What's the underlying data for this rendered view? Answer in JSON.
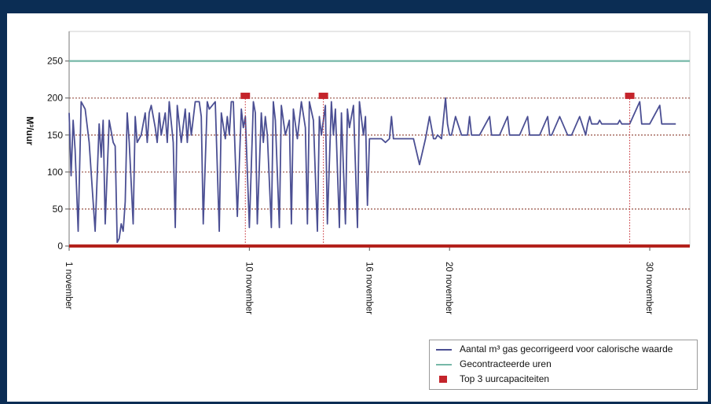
{
  "colors": {
    "frame": "#0b2d54",
    "series": "#4b4f93",
    "contract": "#76b8a8",
    "top3": "#c4242b",
    "grid": "#a06055",
    "axis": "#b3211c"
  },
  "chart_data": {
    "type": "line",
    "ylabel": "M³/uur",
    "xlabel": "",
    "ylim": [
      0,
      290
    ],
    "yticks": [
      0,
      50,
      100,
      150,
      200,
      250
    ],
    "xlim": [
      1,
      32
    ],
    "xticks": [
      {
        "value": 1,
        "label": "1 november"
      },
      {
        "value": 10,
        "label": "10 november"
      },
      {
        "value": 16,
        "label": "16 november"
      },
      {
        "value": 20,
        "label": "20 november"
      },
      {
        "value": 30,
        "label": "30 november"
      }
    ],
    "grid": "horizontal dashed",
    "legend_position": "bottom-right",
    "series": [
      {
        "name": "Aantal m³ gas gecorrigeerd voor calorische waarde",
        "x": [
          1.0,
          1.1,
          1.2,
          1.3,
          1.45,
          1.6,
          1.8,
          2.0,
          2.1,
          2.3,
          2.5,
          2.6,
          2.7,
          2.8,
          3.0,
          3.2,
          3.3,
          3.4,
          3.5,
          3.6,
          3.7,
          3.8,
          3.9,
          4.0,
          4.2,
          4.3,
          4.4,
          4.6,
          4.8,
          4.9,
          5.0,
          5.1,
          5.3,
          5.4,
          5.5,
          5.6,
          5.8,
          5.9,
          6.0,
          6.2,
          6.3,
          6.4,
          6.6,
          6.8,
          6.9,
          7.0,
          7.1,
          7.3,
          7.5,
          7.6,
          7.7,
          7.9,
          8.0,
          8.3,
          8.5,
          8.6,
          8.8,
          8.9,
          9.0,
          9.1,
          9.2,
          9.4,
          9.6,
          9.7,
          9.8,
          10.0,
          10.2,
          10.3,
          10.4,
          10.6,
          10.7,
          10.8,
          10.9,
          11.1,
          11.2,
          11.3,
          11.5,
          11.6,
          11.8,
          12.0,
          12.1,
          12.2,
          12.4,
          12.6,
          12.8,
          12.9,
          13.0,
          13.2,
          13.4,
          13.5,
          13.6,
          13.8,
          13.9,
          14.1,
          14.2,
          14.3,
          14.5,
          14.6,
          14.8,
          14.9,
          15.0,
          15.2,
          15.4,
          15.5,
          15.7,
          15.8,
          15.9,
          16.0,
          16.3,
          16.6,
          16.8,
          17.0,
          17.1,
          17.2,
          17.5,
          17.8,
          18.0,
          18.1,
          18.2,
          18.5,
          18.8,
          19.0,
          19.2,
          19.3,
          19.4,
          19.6,
          19.8,
          19.9,
          20.0,
          20.1,
          20.3,
          20.6,
          20.9,
          21.0,
          21.1,
          21.2,
          21.5,
          22.0,
          22.1,
          22.2,
          22.5,
          22.9,
          23.0,
          23.1,
          23.5,
          23.9,
          24.0,
          24.1,
          24.5,
          24.9,
          25.0,
          25.1,
          25.5,
          25.9,
          26.0,
          26.1,
          26.5,
          26.8,
          26.9,
          27.0,
          27.1,
          27.4,
          27.5,
          27.6,
          28.0,
          28.4,
          28.5,
          28.6,
          29.0,
          29.5,
          29.6,
          29.7,
          30.0,
          30.5,
          30.6,
          30.7,
          31.0,
          31.3
        ],
        "values": [
          180,
          95,
          170,
          130,
          20,
          195,
          185,
          140,
          100,
          20,
          165,
          120,
          170,
          30,
          170,
          140,
          135,
          5,
          10,
          30,
          20,
          60,
          180,
          140,
          30,
          175,
          140,
          150,
          180,
          140,
          180,
          190,
          160,
          140,
          180,
          150,
          180,
          140,
          195,
          140,
          25,
          190,
          140,
          185,
          140,
          180,
          150,
          195,
          195,
          175,
          30,
          195,
          185,
          195,
          20,
          180,
          145,
          175,
          150,
          195,
          195,
          40,
          185,
          160,
          175,
          25,
          195,
          180,
          30,
          180,
          140,
          175,
          150,
          25,
          195,
          170,
          25,
          190,
          150,
          170,
          30,
          185,
          145,
          195,
          160,
          30,
          195,
          170,
          20,
          175,
          150,
          190,
          30,
          195,
          150,
          185,
          25,
          180,
          30,
          185,
          160,
          190,
          25,
          195,
          150,
          175,
          55,
          145,
          145,
          145,
          140,
          145,
          175,
          145,
          145,
          145,
          145,
          145,
          145,
          110,
          145,
          175,
          145,
          145,
          150,
          145,
          200,
          165,
          150,
          150,
          175,
          150,
          150,
          175,
          150,
          150,
          150,
          175,
          150,
          150,
          150,
          175,
          150,
          150,
          150,
          175,
          150,
          150,
          150,
          175,
          150,
          150,
          175,
          150,
          150,
          150,
          175,
          150,
          165,
          175,
          165,
          165,
          170,
          165,
          165,
          165,
          170,
          165,
          165,
          195,
          165,
          165,
          165,
          190,
          165,
          165,
          165,
          165
        ]
      },
      {
        "name": "Gecontracteerde uren",
        "x": [
          1,
          32
        ],
        "values": [
          250,
          250
        ]
      }
    ],
    "markers": {
      "name": "Top 3 uurcapaciteiten",
      "x": [
        9.8,
        13.7,
        29.0
      ],
      "values": [
        203,
        203,
        203
      ]
    }
  }
}
